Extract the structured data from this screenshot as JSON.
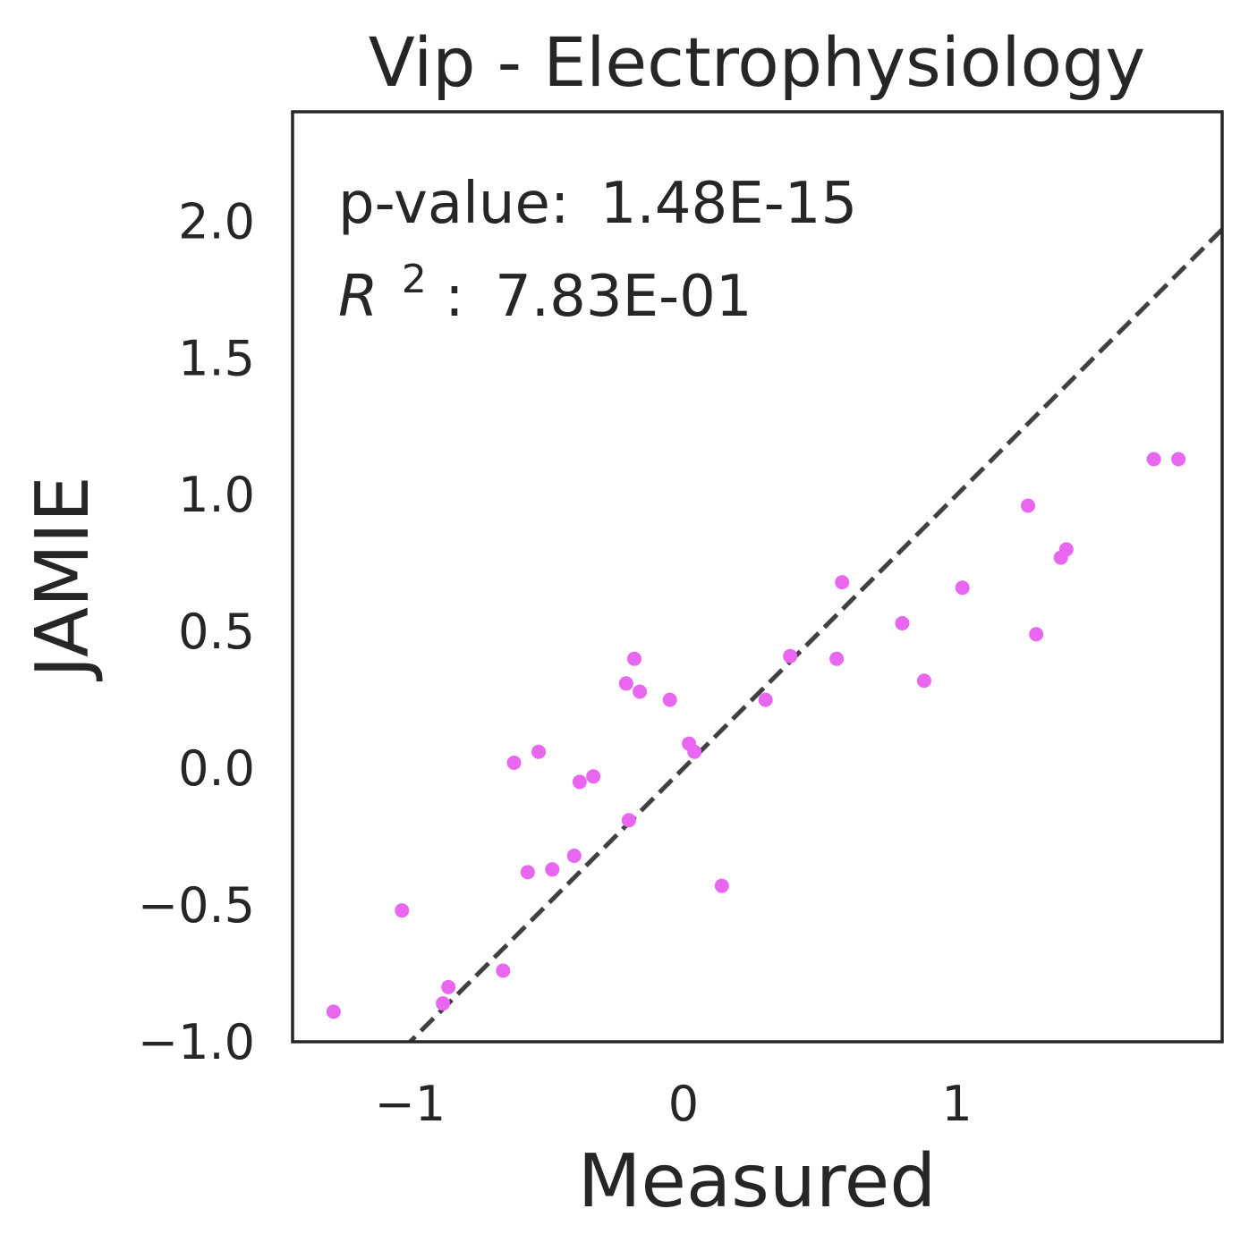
{
  "chart_data": {
    "type": "scatter",
    "title": "Vip - Electrophysiology",
    "xlabel": "Measured",
    "ylabel": "JAMIE",
    "xlim": [
      -1.43,
      1.97
    ],
    "ylim": [
      -1.0,
      2.4
    ],
    "x_ticks": [
      -1,
      0,
      1
    ],
    "y_ticks": [
      -1.0,
      -0.5,
      0.0,
      0.5,
      1.0,
      1.5,
      2.0
    ],
    "x_tick_labels": [
      "−1",
      "0",
      "1"
    ],
    "y_tick_labels": [
      "−1.0",
      "−0.5",
      "0.0",
      "0.5",
      "1.0",
      "1.5",
      "2.0"
    ],
    "grid": false,
    "point_color": "#e866f0",
    "reference_line": {
      "style": "dashed",
      "color": "#404040",
      "slope": 1,
      "intercept": 0
    },
    "annotations": {
      "pvalue_label": "p-value:",
      "pvalue": "1.48E-15",
      "r2_label": "R",
      "r2_sup": "2",
      "r2_value": "7.83E-01"
    },
    "points": [
      {
        "x": -1.28,
        "y": -0.89
      },
      {
        "x": -1.03,
        "y": -0.52
      },
      {
        "x": -0.88,
        "y": -0.86
      },
      {
        "x": -0.86,
        "y": -0.8
      },
      {
        "x": -0.66,
        "y": -0.74
      },
      {
        "x": -0.62,
        "y": 0.02
      },
      {
        "x": -0.57,
        "y": -0.38
      },
      {
        "x": -0.53,
        "y": 0.06
      },
      {
        "x": -0.48,
        "y": -0.37
      },
      {
        "x": -0.4,
        "y": -0.32
      },
      {
        "x": -0.38,
        "y": -0.05
      },
      {
        "x": -0.33,
        "y": -0.03
      },
      {
        "x": -0.21,
        "y": 0.31
      },
      {
        "x": -0.2,
        "y": -0.19
      },
      {
        "x": -0.18,
        "y": 0.4
      },
      {
        "x": -0.16,
        "y": 0.28
      },
      {
        "x": -0.05,
        "y": 0.25
      },
      {
        "x": 0.02,
        "y": 0.09
      },
      {
        "x": 0.04,
        "y": 0.06
      },
      {
        "x": 0.14,
        "y": -0.43
      },
      {
        "x": 0.3,
        "y": 0.25
      },
      {
        "x": 0.39,
        "y": 0.41
      },
      {
        "x": 0.56,
        "y": 0.4
      },
      {
        "x": 0.58,
        "y": 0.68
      },
      {
        "x": 0.8,
        "y": 0.53
      },
      {
        "x": 0.88,
        "y": 0.32
      },
      {
        "x": 1.02,
        "y": 0.66
      },
      {
        "x": 1.26,
        "y": 0.96
      },
      {
        "x": 1.29,
        "y": 0.49
      },
      {
        "x": 1.38,
        "y": 0.77
      },
      {
        "x": 1.4,
        "y": 0.8
      },
      {
        "x": 1.72,
        "y": 1.13
      },
      {
        "x": 1.81,
        "y": 1.13
      }
    ]
  }
}
